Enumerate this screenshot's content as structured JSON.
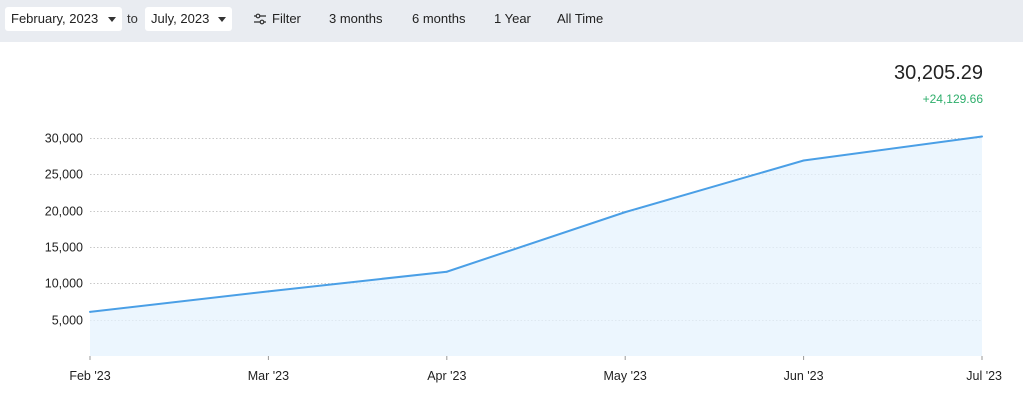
{
  "toolbar": {
    "from_value": "February, 2023",
    "to_label": "to",
    "to_value": "July, 2023",
    "filter_label": "Filter",
    "filter_icon": "sliders-icon",
    "range_3m": "3 months",
    "range_6m": "6 months",
    "range_1y": "1 Year",
    "range_all": "All Time"
  },
  "summary": {
    "total": "30,205.29",
    "change": "+24,129.66",
    "change_color": "#2eae6b"
  },
  "colors": {
    "line": "#4a9fe6",
    "fill": "#e6f3fd",
    "grid": "#c8c8c8",
    "toolbar_bg": "#e9ecf1"
  },
  "chart_data": {
    "type": "area",
    "categories": [
      "Feb '23",
      "Mar '23",
      "Apr '23",
      "May '23",
      "Jun '23",
      "Jul '23"
    ],
    "values": [
      6076,
      8900,
      11600,
      19800,
      26900,
      30205.29
    ],
    "ylim": [
      0,
      30000
    ],
    "yticks": [
      5000,
      10000,
      15000,
      20000,
      25000,
      30000
    ],
    "ytick_labels": [
      "5,000",
      "10,000",
      "15,000",
      "20,000",
      "25,000",
      "30,000"
    ],
    "grid": true
  }
}
